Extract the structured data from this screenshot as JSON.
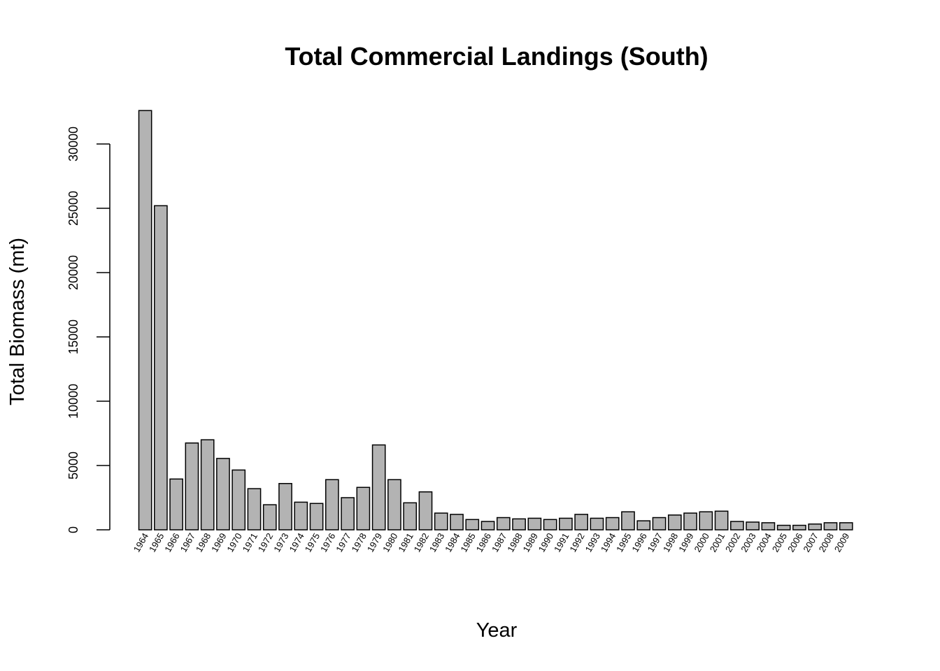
{
  "chart_data": {
    "type": "bar",
    "title": "Total Commercial Landings (South)",
    "xlabel": "Year",
    "ylabel": "Total Biomass (mt)",
    "ylim": [
      0,
      32500
    ],
    "yticks": [
      0,
      5000,
      10000,
      15000,
      20000,
      25000,
      30000
    ],
    "ytick_labels": [
      "0",
      "5000",
      "10000",
      "15000",
      "20000",
      "25000",
      "30000"
    ],
    "grid": false,
    "bar_color": "#b3b3b3",
    "bar_edge_color": "#000000",
    "categories": [
      "1964",
      "1965",
      "1966",
      "1967",
      "1968",
      "1969",
      "1970",
      "1971",
      "1972",
      "1973",
      "1974",
      "1975",
      "1976",
      "1977",
      "1978",
      "1979",
      "1980",
      "1981",
      "1982",
      "1983",
      "1984",
      "1985",
      "1986",
      "1987",
      "1988",
      "1989",
      "1990",
      "1991",
      "1992",
      "1993",
      "1994",
      "1995",
      "1996",
      "1997",
      "1998",
      "1999",
      "2000",
      "2001",
      "2002",
      "2003",
      "2004",
      "2005",
      "2006",
      "2007",
      "2008",
      "2009"
    ],
    "values": [
      32600,
      25200,
      3950,
      6750,
      7000,
      5550,
      4650,
      3200,
      1950,
      3600,
      2150,
      2050,
      3900,
      2500,
      3300,
      6600,
      3900,
      2100,
      2950,
      1300,
      1200,
      800,
      650,
      950,
      850,
      900,
      800,
      900,
      1200,
      900,
      950,
      1400,
      700,
      950,
      1150,
      1300,
      1400,
      1450,
      650,
      600,
      550,
      350,
      350,
      450,
      550,
      550
    ]
  }
}
